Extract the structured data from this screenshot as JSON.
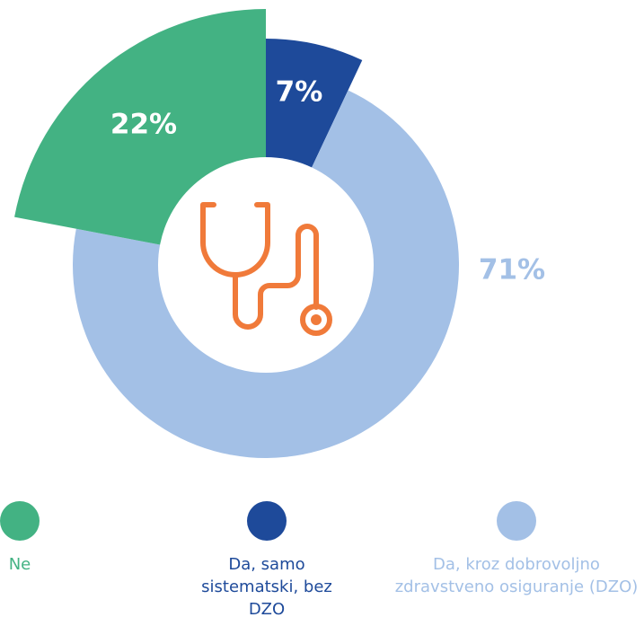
{
  "chart_data": {
    "type": "pie",
    "categories": [
      "Ne",
      "Da, samo sistematski, bez DZO",
      "Da, kroz dobrovoljno zdravstveno osiguranje (DZO)"
    ],
    "values": [
      22,
      7,
      71
    ],
    "value_labels": [
      "22%",
      "7%",
      "71%"
    ],
    "colors": [
      "#43b283",
      "#1e4a9a",
      "#a3c0e6"
    ]
  }
}
